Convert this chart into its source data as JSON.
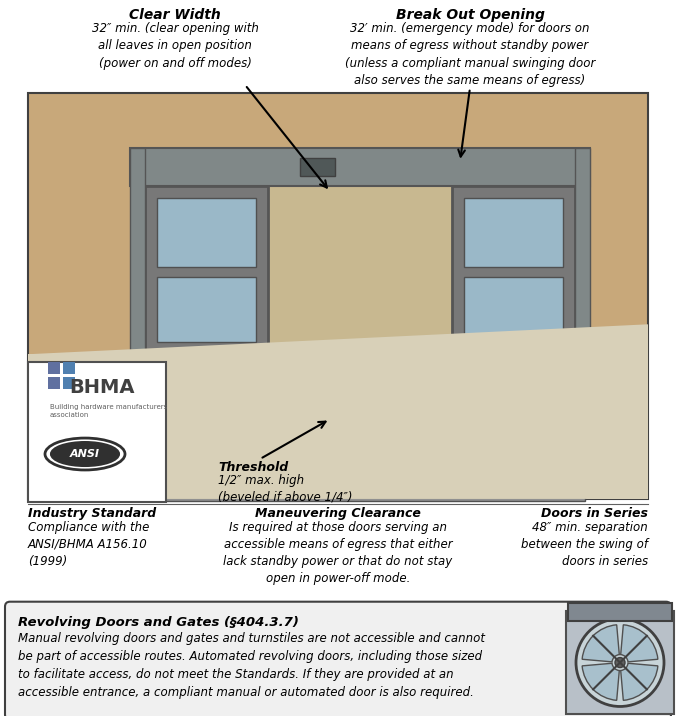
{
  "clear_width_title": "Clear Width",
  "clear_width_text": "32″ min. (clear opening with\nall leaves in open position\n(power on and off modes)",
  "breakout_title": "Break Out Opening",
  "breakout_text": "32′ min. (emergency mode) for doors on\nmeans of egress without standby power\n(unless a compliant manual swinging door\nalso serves the same means of egress)",
  "threshold_title": "Threshold",
  "threshold_text": "1/2″ max. high\n(beveled if above 1/4″)",
  "maneuvering_title": "Maneuvering Clearance",
  "maneuvering_text": "Is required at those doors serving an\naccessible means of egress that either\nlack standby power or that do not stay\nopen in power-off mode.",
  "industry_title": "Industry Standard",
  "industry_text": "Compliance with the\nANSI/BHMA A156.10\n(1999)",
  "doors_series_title": "Doors in Series",
  "doors_series_text": "48″ min. separation\nbetween the swing of\ndoors in series",
  "revolving_title": "Revolving Doors and Gates (§404.3.7)",
  "revolving_text": "Manual revolving doors and gates and turnstiles are not accessible and cannot\nbe part of accessible routes. Automated revolving doors, including those sized\nto facilitate access, do not meet the Standards. If they are provided at an\naccessible entrance, a compliant manual or automated door is also required.",
  "wall_color": "#c8a87a",
  "floor_color": "#d8d0b8",
  "door_frame_color": "#555555",
  "door_glass_color": "#9ab8c8",
  "door_bg_color": "#7a8890",
  "ground_color": "#c8c0a8",
  "interior_wall": "#c8b890",
  "box_border": "#404040"
}
